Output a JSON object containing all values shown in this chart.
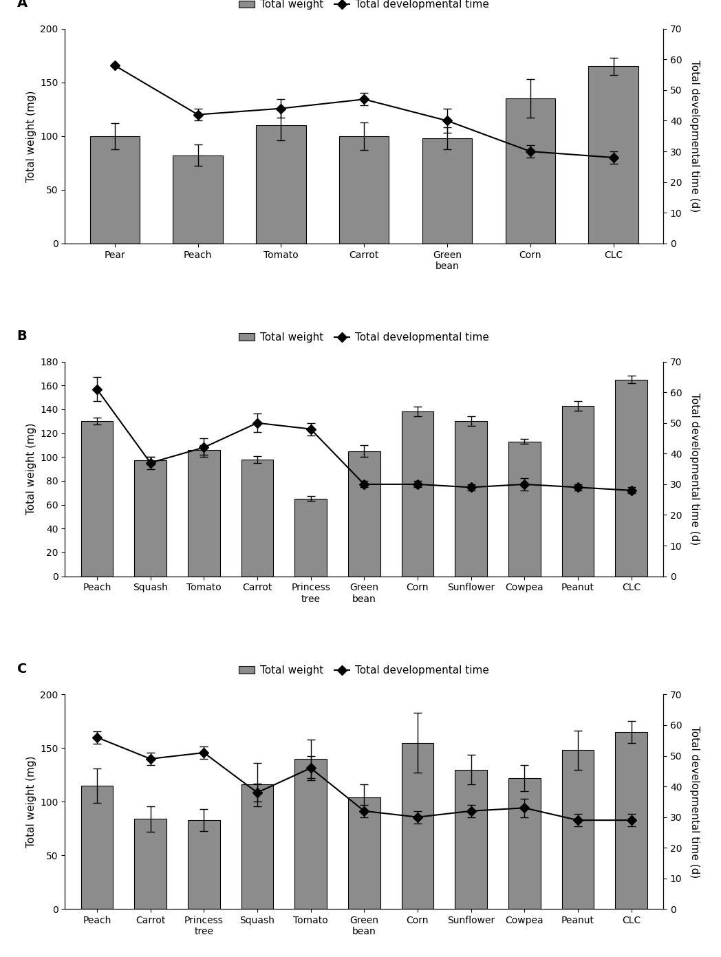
{
  "panels": [
    {
      "label": "A",
      "categories": [
        "Pear",
        "Peach",
        "Tomato",
        "Carrot",
        "Green\nbean",
        "Corn",
        "CLC"
      ],
      "bar_values": [
        100,
        82,
        110,
        100,
        98,
        135,
        165
      ],
      "bar_errors": [
        12,
        10,
        14,
        13,
        10,
        18,
        8
      ],
      "line_values": [
        58,
        42,
        44,
        47,
        40,
        30,
        28
      ],
      "line_errors": [
        0,
        2,
        3,
        2,
        4,
        2,
        2
      ],
      "ylim_left": [
        0,
        200
      ],
      "yticks_left": [
        0,
        50,
        100,
        150,
        200
      ],
      "ylim_right": [
        0,
        70
      ],
      "yticks_right": [
        0,
        10,
        20,
        30,
        40,
        50,
        60,
        70
      ]
    },
    {
      "label": "B",
      "categories": [
        "Peach",
        "Squash",
        "Tomato",
        "Carrot",
        "Princess\ntree",
        "Green\nbean",
        "Corn",
        "Sunflower",
        "Cowpea",
        "Peanut",
        "CLC"
      ],
      "bar_values": [
        130,
        97,
        106,
        98,
        65,
        105,
        138,
        130,
        113,
        143,
        165
      ],
      "bar_errors": [
        3,
        3,
        4,
        3,
        2,
        5,
        4,
        4,
        2,
        4,
        3
      ],
      "line_values": [
        61,
        37,
        42,
        50,
        48,
        30,
        30,
        29,
        30,
        29,
        28
      ],
      "line_errors": [
        4,
        2,
        3,
        3,
        2,
        1,
        1,
        1,
        2,
        1,
        1
      ],
      "ylim_left": [
        0,
        180
      ],
      "yticks_left": [
        0,
        20,
        40,
        60,
        80,
        100,
        120,
        140,
        160,
        180
      ],
      "ylim_right": [
        0,
        70
      ],
      "yticks_right": [
        0,
        10,
        20,
        30,
        40,
        50,
        60,
        70
      ]
    },
    {
      "label": "C",
      "categories": [
        "Peach",
        "Carrot",
        "Princess\ntree",
        "Squash",
        "Tomato",
        "Green\nbean",
        "Corn",
        "Sunflower",
        "Cowpea",
        "Peanut",
        "CLC"
      ],
      "bar_values": [
        115,
        84,
        83,
        116,
        140,
        104,
        155,
        130,
        122,
        148,
        165
      ],
      "bar_errors": [
        16,
        12,
        10,
        20,
        18,
        12,
        28,
        14,
        12,
        18,
        10
      ],
      "line_values": [
        56,
        49,
        51,
        38,
        46,
        32,
        30,
        32,
        33,
        29,
        29
      ],
      "line_errors": [
        2,
        2,
        2,
        3,
        4,
        2,
        2,
        2,
        3,
        2,
        2
      ],
      "ylim_left": [
        0,
        200
      ],
      "yticks_left": [
        0,
        50,
        100,
        150,
        200
      ],
      "ylim_right": [
        0,
        70
      ],
      "yticks_right": [
        0,
        10,
        20,
        30,
        40,
        50,
        60,
        70
      ]
    }
  ],
  "bar_color": "#8c8c8c",
  "bar_edgecolor": "#000000",
  "line_color": "#000000",
  "line_marker": "D",
  "marker_facecolor": "#000000",
  "marker_size": 7,
  "ylabel_left": "Total weight (mg)",
  "ylabel_right": "Total developmental time (d)",
  "legend_bar_label": "Total weight",
  "legend_line_label": "Total developmental time",
  "background_color": "#ffffff"
}
